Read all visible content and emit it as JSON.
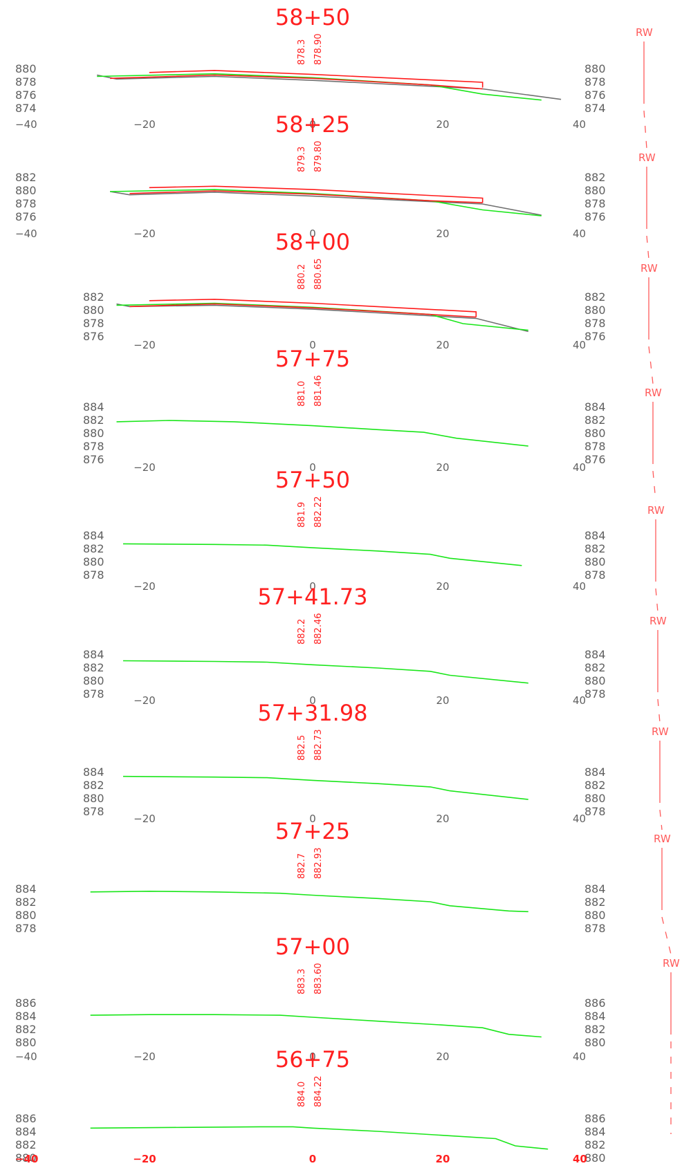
{
  "sheet": {
    "x_axis": {
      "min": -40,
      "max": 40,
      "tick_labels": [
        "−40",
        "−20",
        "0",
        "20",
        "40"
      ]
    },
    "colors": {
      "station_title": "#ff2020",
      "existing_ground": "#19e619",
      "proposed": "#ff1a1a",
      "subgrade": "#707070",
      "axis_text": "#606060",
      "row_marker": "#ff5a5a"
    },
    "row_label": "RW"
  },
  "sections": [
    {
      "station": "58+50",
      "elev_labels": [
        "878.3",
        "878.90"
      ],
      "y_ticks": [
        "880",
        "878",
        "876",
        "874"
      ],
      "y_min": 874,
      "y_max": 880,
      "x_ticks": [
        "−40",
        "−20",
        "0",
        "20",
        "40"
      ],
      "ground": [
        [
          -33,
          878.9
        ],
        [
          -15,
          879.3
        ],
        [
          0,
          878.7
        ],
        [
          18,
          877.6
        ],
        [
          26,
          876.2
        ],
        [
          35,
          875.3
        ]
      ],
      "subgrade": [
        [
          -33,
          879.1
        ],
        [
          -30,
          878.5
        ],
        [
          -15,
          878.9
        ],
        [
          0,
          878.3
        ],
        [
          26,
          877.0
        ],
        [
          38,
          875.4
        ]
      ],
      "design": [
        [
          [
            -31,
            878.6
          ],
          [
            -15,
            879.1
          ],
          [
            0,
            878.6
          ],
          [
            18,
            877.6
          ],
          [
            26,
            877.0
          ]
        ],
        [
          [
            -25,
            879.5
          ],
          [
            -15,
            879.8
          ],
          [
            0,
            879.2
          ],
          [
            26,
            878.0
          ],
          [
            26,
            877.2
          ]
        ]
      ]
    },
    {
      "station": "58+25",
      "elev_labels": [
        "879.3",
        "879.80"
      ],
      "y_ticks": [
        "882",
        "880",
        "878",
        "876"
      ],
      "y_min": 876,
      "y_max": 882,
      "x_ticks": [
        "−40",
        "−20",
        "0",
        "20",
        "40"
      ],
      "ground": [
        [
          -31,
          879.9
        ],
        [
          -15,
          880.2
        ],
        [
          0,
          879.6
        ],
        [
          18,
          878.5
        ],
        [
          26,
          877.1
        ],
        [
          35,
          876.2
        ]
      ],
      "subgrade": [
        [
          -31,
          879.9
        ],
        [
          -28,
          879.4
        ],
        [
          -15,
          879.8
        ],
        [
          0,
          879.2
        ],
        [
          26,
          878.0
        ],
        [
          35,
          876.3
        ]
      ],
      "design": [
        [
          [
            -28,
            879.6
          ],
          [
            -15,
            880.0
          ],
          [
            0,
            879.5
          ],
          [
            18,
            878.5
          ],
          [
            26,
            878.2
          ]
        ],
        [
          [
            -25,
            880.5
          ],
          [
            -15,
            880.7
          ],
          [
            0,
            880.2
          ],
          [
            26,
            878.9
          ],
          [
            26,
            878.2
          ]
        ]
      ]
    },
    {
      "station": "58+00",
      "elev_labels": [
        "880.2",
        "880.65"
      ],
      "y_ticks": [
        "882",
        "880",
        "878",
        "876"
      ],
      "y_min": 876,
      "y_max": 882,
      "x_ticks": [
        "",
        "−20",
        "0",
        "20",
        "40"
      ],
      "ground": [
        [
          -30,
          880.8
        ],
        [
          -15,
          881.1
        ],
        [
          0,
          880.5
        ],
        [
          18,
          879.4
        ],
        [
          23,
          878.0
        ],
        [
          33,
          877.0
        ]
      ],
      "subgrade": [
        [
          -30,
          881.0
        ],
        [
          -28,
          880.6
        ],
        [
          -15,
          880.8
        ],
        [
          0,
          880.2
        ],
        [
          25,
          878.8
        ],
        [
          33,
          876.8
        ]
      ],
      "design": [
        [
          [
            -28,
            880.6
          ],
          [
            -15,
            881.0
          ],
          [
            0,
            880.4
          ],
          [
            18,
            879.4
          ],
          [
            25,
            879.0
          ]
        ],
        [
          [
            -25,
            881.5
          ],
          [
            -15,
            881.7
          ],
          [
            0,
            881.1
          ],
          [
            25,
            879.8
          ],
          [
            25,
            879.0
          ]
        ]
      ]
    },
    {
      "station": "57+75",
      "elev_labels": [
        "881.0",
        "881.46"
      ],
      "y_ticks": [
        "884",
        "882",
        "880",
        "878",
        "876"
      ],
      "y_min": 876,
      "y_max": 884,
      "x_ticks": [
        "",
        "−20",
        "0",
        "20",
        "40"
      ],
      "ground": [
        [
          -30,
          881.8
        ],
        [
          -22,
          882.0
        ],
        [
          -12,
          881.8
        ],
        [
          0,
          881.2
        ],
        [
          10,
          880.6
        ],
        [
          17,
          880.2
        ],
        [
          22,
          879.3
        ],
        [
          33,
          878.1
        ]
      ],
      "subgrade": [],
      "design": []
    },
    {
      "station": "57+50",
      "elev_labels": [
        "881.9",
        "882.22"
      ],
      "y_ticks": [
        "884",
        "882",
        "880",
        "878"
      ],
      "y_min": 878,
      "y_max": 884,
      "x_ticks": [
        "",
        "−20",
        "0",
        "20",
        "40"
      ],
      "ground": [
        [
          -29,
          882.8
        ],
        [
          -15,
          882.7
        ],
        [
          -7,
          882.6
        ],
        [
          0,
          882.2
        ],
        [
          10,
          881.7
        ],
        [
          18,
          881.2
        ],
        [
          21,
          880.6
        ],
        [
          32,
          879.5
        ]
      ],
      "subgrade": [],
      "design": []
    },
    {
      "station": "57+41.73",
      "elev_labels": [
        "882.2",
        "882.46"
      ],
      "y_ticks": [
        "884",
        "882",
        "880",
        "878"
      ],
      "y_min": 878,
      "y_max": 884,
      "x_ticks": [
        "",
        "−20",
        "0",
        "20",
        "40"
      ],
      "ground": [
        [
          -29,
          883.1
        ],
        [
          -15,
          883.0
        ],
        [
          -7,
          882.9
        ],
        [
          0,
          882.5
        ],
        [
          10,
          882.0
        ],
        [
          18,
          881.5
        ],
        [
          21,
          880.9
        ],
        [
          33,
          879.7
        ]
      ],
      "subgrade": [],
      "design": []
    },
    {
      "station": "57+31.98",
      "elev_labels": [
        "882.5",
        "882.73"
      ],
      "y_ticks": [
        "884",
        "882",
        "880",
        "878"
      ],
      "y_min": 878,
      "y_max": 884,
      "x_ticks": [
        "",
        "−20",
        "0",
        "20",
        "40"
      ],
      "ground": [
        [
          -29,
          883.4
        ],
        [
          -15,
          883.3
        ],
        [
          -7,
          883.2
        ],
        [
          0,
          882.8
        ],
        [
          10,
          882.3
        ],
        [
          18,
          881.8
        ],
        [
          21,
          881.2
        ],
        [
          33,
          879.9
        ]
      ],
      "subgrade": [],
      "design": []
    },
    {
      "station": "57+25",
      "elev_labels": [
        "882.7",
        "882.93"
      ],
      "y_ticks": [
        "884",
        "882",
        "880",
        "878"
      ],
      "y_min": 878,
      "y_max": 884,
      "x_ticks": [],
      "ground": [
        [
          -34,
          883.6
        ],
        [
          -25,
          883.7
        ],
        [
          -15,
          883.6
        ],
        [
          -5,
          883.4
        ],
        [
          0,
          883.1
        ],
        [
          10,
          882.6
        ],
        [
          18,
          882.1
        ],
        [
          21,
          881.5
        ],
        [
          30,
          880.7
        ],
        [
          33,
          880.6
        ]
      ],
      "subgrade": [],
      "design": []
    },
    {
      "station": "57+00",
      "elev_labels": [
        "883.3",
        "883.60"
      ],
      "y_ticks": [
        "886",
        "884",
        "882",
        "880"
      ],
      "y_min": 880,
      "y_max": 886,
      "x_ticks": [
        "−40",
        "−20",
        "0",
        "20",
        "40"
      ],
      "ground": [
        [
          -34,
          884.2
        ],
        [
          -25,
          884.3
        ],
        [
          -15,
          884.3
        ],
        [
          -5,
          884.2
        ],
        [
          0,
          883.9
        ],
        [
          10,
          883.3
        ],
        [
          20,
          882.7
        ],
        [
          26,
          882.3
        ],
        [
          30,
          881.3
        ],
        [
          35,
          880.9
        ]
      ],
      "subgrade": [],
      "design": []
    },
    {
      "station": "56+75",
      "elev_labels": [
        "884.0",
        "884.22"
      ],
      "y_ticks": [
        "886",
        "884",
        "882",
        "880"
      ],
      "y_min": 880,
      "y_max": 886,
      "x_ticks": [
        "−40",
        "−20",
        "0",
        "20",
        "40"
      ],
      "ground": [
        [
          -34,
          884.6
        ],
        [
          -20,
          884.7
        ],
        [
          -8,
          884.8
        ],
        [
          -3,
          884.8
        ],
        [
          0,
          884.6
        ],
        [
          10,
          884.1
        ],
        [
          20,
          883.5
        ],
        [
          28,
          883.0
        ],
        [
          31,
          881.9
        ],
        [
          36,
          881.4
        ]
      ],
      "subgrade": [],
      "design": []
    }
  ]
}
